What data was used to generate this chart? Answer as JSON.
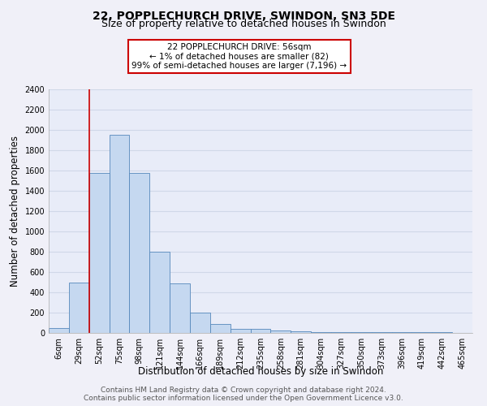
{
  "title1": "22, POPPLECHURCH DRIVE, SWINDON, SN3 5DE",
  "title2": "Size of property relative to detached houses in Swindon",
  "xlabel": "Distribution of detached houses by size in Swindon",
  "ylabel": "Number of detached properties",
  "bar_labels": [
    "6sqm",
    "29sqm",
    "52sqm",
    "75sqm",
    "98sqm",
    "121sqm",
    "144sqm",
    "166sqm",
    "189sqm",
    "212sqm",
    "235sqm",
    "258sqm",
    "281sqm",
    "304sqm",
    "327sqm",
    "350sqm",
    "373sqm",
    "396sqm",
    "419sqm",
    "442sqm",
    "465sqm"
  ],
  "bar_heights": [
    50,
    500,
    1580,
    1950,
    1580,
    800,
    490,
    200,
    90,
    40,
    40,
    25,
    20,
    5,
    5,
    5,
    5,
    5,
    5,
    5,
    0
  ],
  "bar_color": "#c5d8f0",
  "bar_edge_color": "#5588bb",
  "background_color": "#e8ecf8",
  "grid_color": "#d0d8e8",
  "fig_facecolor": "#f0f0f8",
  "ylim": [
    0,
    2400
  ],
  "yticks": [
    0,
    200,
    400,
    600,
    800,
    1000,
    1200,
    1400,
    1600,
    1800,
    2000,
    2200,
    2400
  ],
  "red_line_x": 1.5,
  "annotation_line1": "22 POPPLECHURCH DRIVE: 56sqm",
  "annotation_line2": "← 1% of detached houses are smaller (82)",
  "annotation_line3": "99% of semi-detached houses are larger (7,196) →",
  "annotation_box_color": "#ffffff",
  "annotation_border_color": "#cc0000",
  "footer_text": "Contains HM Land Registry data © Crown copyright and database right 2024.\nContains public sector information licensed under the Open Government Licence v3.0.",
  "title1_fontsize": 10,
  "title2_fontsize": 9,
  "xlabel_fontsize": 8.5,
  "ylabel_fontsize": 8.5,
  "tick_fontsize": 7,
  "annotation_fontsize": 7.5,
  "footer_fontsize": 6.5
}
